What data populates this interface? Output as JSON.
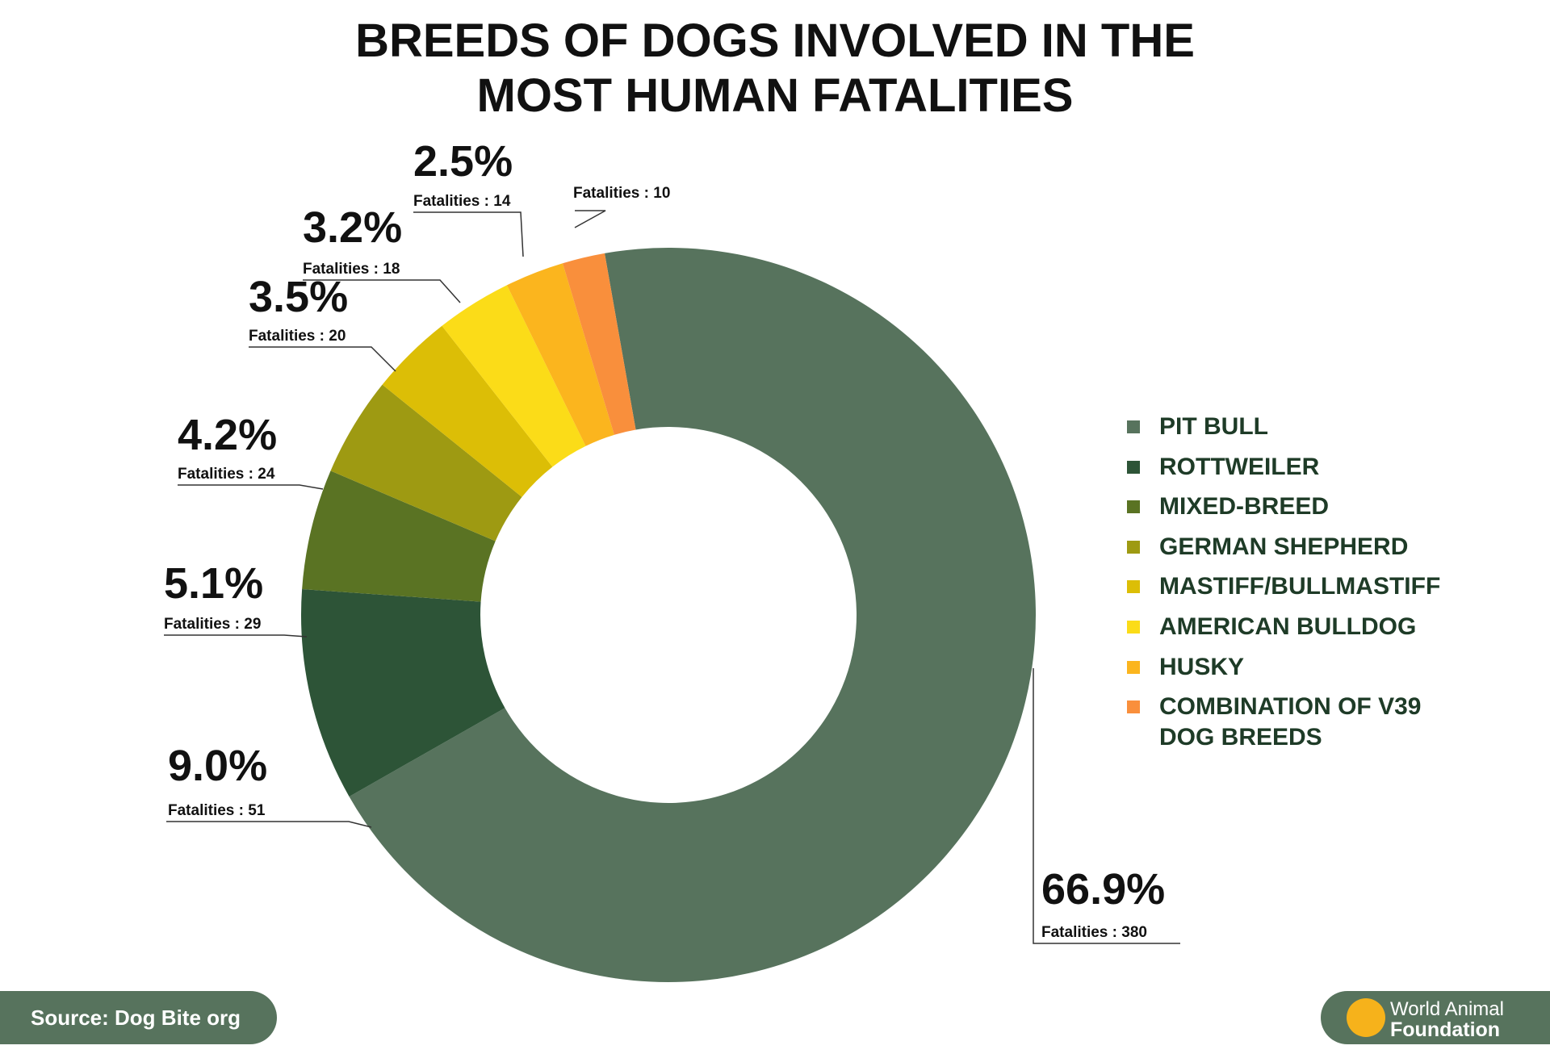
{
  "chart_data": {
    "type": "donut",
    "title": [
      "BREEDS OF DOGS INVOLVED IN THE",
      "MOST HUMAN FATALITIES"
    ],
    "categories": [
      "PIT BULL",
      "ROTTWEILER",
      "MIXED-BREED",
      "GERMAN SHEPHERD",
      "MASTIFF/BULLMASTIFF",
      "AMERICAN BULLDOG",
      "HUSKY",
      "COMBINATION OF V39 DOG BREEDS"
    ],
    "values": [
      66.9,
      9.0,
      5.1,
      4.2,
      3.5,
      3.2,
      2.5,
      1.8
    ],
    "value_labels": [
      "66.9%",
      "9.0%",
      "5.1%",
      "4.2%",
      "3.5%",
      "3.2%",
      "2.5%",
      null
    ],
    "fatality_labels": [
      "Fatalities : 380",
      "Fatalities : 51",
      "Fatalities : 29",
      "Fatalities : 24",
      "Fatalities : 20",
      "Fatalities : 18",
      "Fatalities : 14",
      "Fatalities : 10"
    ],
    "colors": [
      "#57735d",
      "#2d5437",
      "#5a7323",
      "#9e9a12",
      "#dcbe06",
      "#fbdc18",
      "#fbb51e",
      "#f98f3c"
    ],
    "source": "Source: Dog Bite org",
    "logo": [
      "World Animal",
      "Foundation"
    ]
  }
}
